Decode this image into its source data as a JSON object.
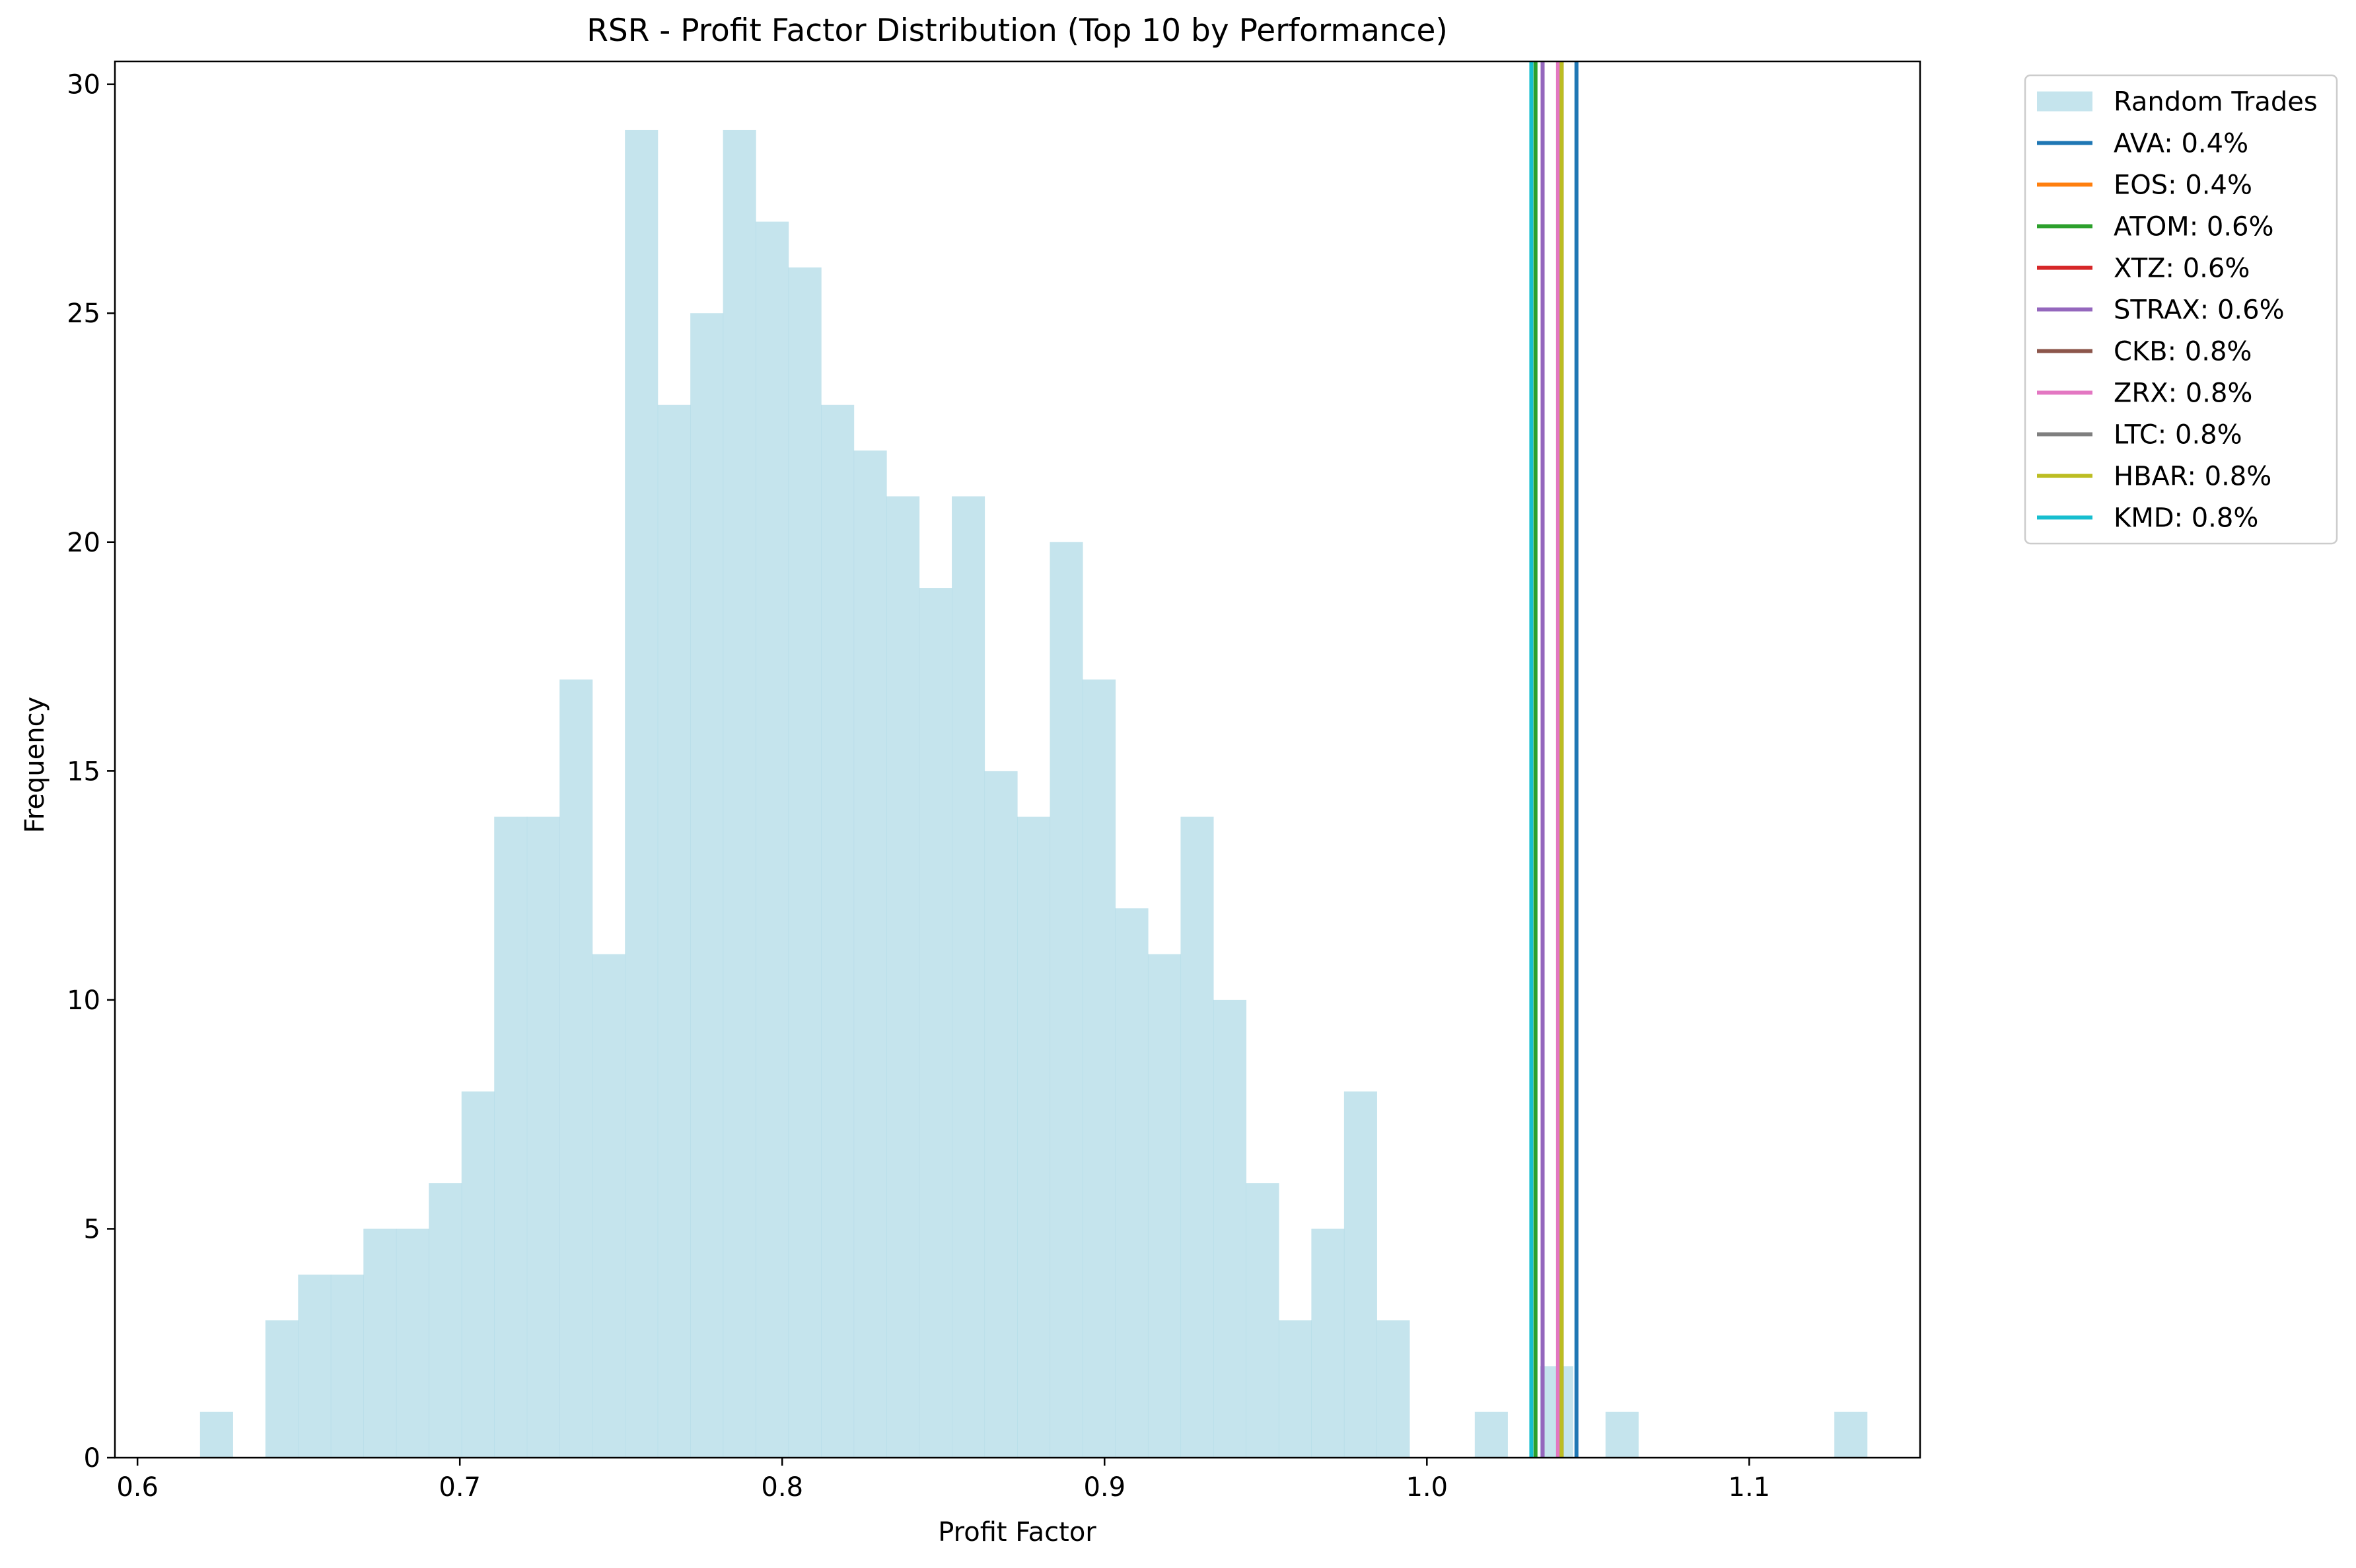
{
  "chart_data": {
    "type": "bar",
    "title": "RSR - Profit Factor Distribution (Top 10 by Performance)",
    "xlabel": "Profit Factor",
    "ylabel": "Frequency",
    "xlim": [
      0.593,
      1.153
    ],
    "ylim": [
      0,
      30.5
    ],
    "xticks": [
      0.6,
      0.7,
      0.8,
      0.9,
      1.0,
      1.1
    ],
    "xtick_labels": [
      "0.6",
      "0.7",
      "0.8",
      "0.9",
      "1.0",
      "1.1"
    ],
    "yticks": [
      0,
      5,
      10,
      15,
      20,
      25,
      30
    ],
    "ytick_labels": [
      "0",
      "5",
      "10",
      "15",
      "20",
      "25",
      "30"
    ],
    "histogram": {
      "name": "Random Trades",
      "color": "#add8e6",
      "alpha": 0.7,
      "bin_start": 0.6194,
      "bin_width": 0.01014,
      "counts": [
        1,
        0,
        3,
        4,
        4,
        5,
        5,
        6,
        8,
        14,
        14,
        17,
        11,
        29,
        23,
        25,
        29,
        27,
        26,
        23,
        22,
        21,
        19,
        21,
        15,
        14,
        20,
        17,
        12,
        11,
        14,
        10,
        6,
        3,
        5,
        8,
        3,
        0,
        0,
        1,
        0,
        2,
        0,
        1,
        0,
        0,
        0,
        0,
        0,
        0,
        1
      ]
    },
    "vlines": [
      {
        "label": "AVA: 0.4%",
        "x": 1.0464,
        "color": "#1f77b4"
      },
      {
        "label": "EOS: 0.4%",
        "x": 1.0418,
        "color": "#ff7f0e"
      },
      {
        "label": "ATOM: 0.6%",
        "x": 1.0337,
        "color": "#2ca02c"
      },
      {
        "label": "XTZ: 0.6%",
        "x": 1.0359,
        "color": "#d62728"
      },
      {
        "label": "STRAX: 0.6%",
        "x": 1.0359,
        "color": "#9467bd"
      },
      {
        "label": "CKB: 0.8%",
        "x": 1.0407,
        "color": "#8c564b"
      },
      {
        "label": "ZRX: 0.8%",
        "x": 1.0407,
        "color": "#e377c2"
      },
      {
        "label": "LTC: 0.8%",
        "x": 1.0418,
        "color": "#7f7f7f"
      },
      {
        "label": "HBAR: 0.8%",
        "x": 1.0418,
        "color": "#bcbd22"
      },
      {
        "label": "KMD: 0.8%",
        "x": 1.0324,
        "color": "#17becf"
      }
    ],
    "legend": {
      "placement": "outside-top-right"
    },
    "grid": false
  }
}
